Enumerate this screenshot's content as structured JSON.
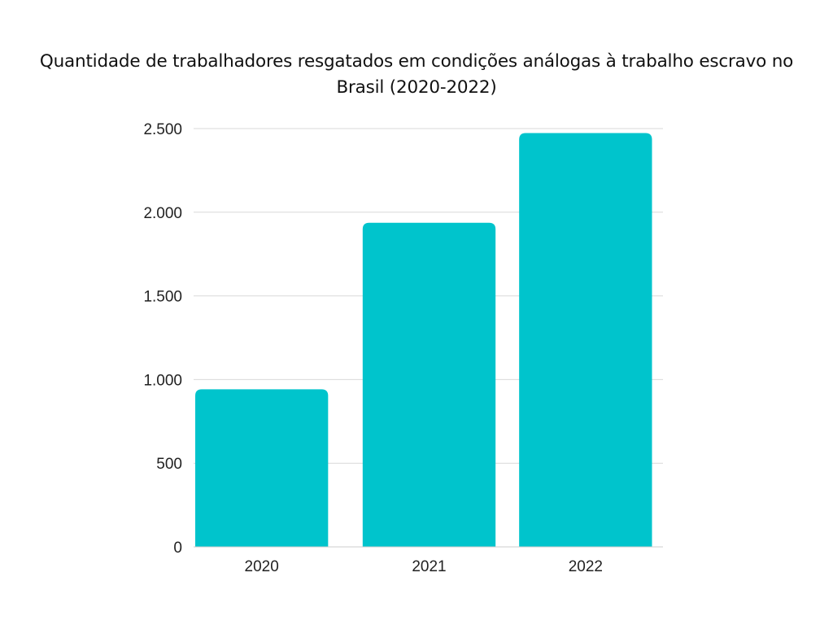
{
  "chart_data": {
    "type": "bar",
    "title": "Quantidade de trabalhadores resgatados em condições análogas à trabalho escravo no Brasil (2020-2022)",
    "categories": [
      "2020",
      "2021",
      "2022"
    ],
    "values": [
      942,
      1937,
      2473
    ],
    "ylim": [
      0,
      2500
    ],
    "yticks": [
      0,
      500,
      1000,
      1500,
      2000,
      2500
    ],
    "ytick_labels": [
      "0",
      "500",
      "1.000",
      "1.500",
      "2.000",
      "2.500"
    ],
    "xlabel": "",
    "ylabel": "",
    "grid": true,
    "bar_color": "#00C4CC"
  }
}
